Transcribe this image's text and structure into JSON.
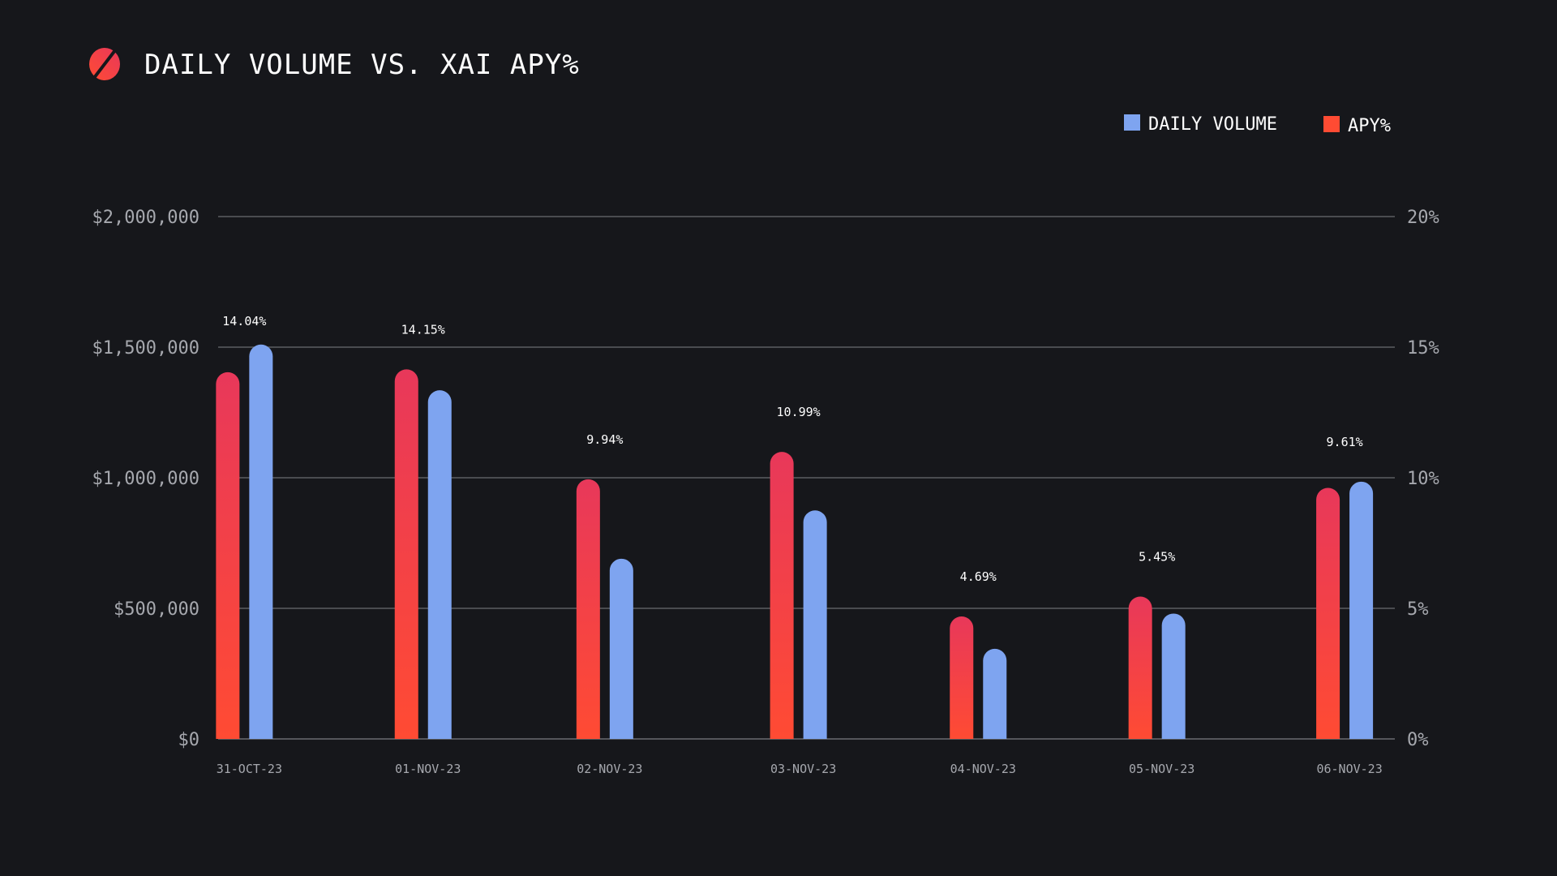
{
  "chart_data": {
    "type": "bar",
    "title": "DAILY VOLUME VS. XAI APY%",
    "categories": [
      "31-OCT-23",
      "01-NOV-23",
      "02-NOV-23",
      "03-NOV-23",
      "04-NOV-23",
      "05-NOV-23",
      "06-NOV-23"
    ],
    "series": [
      {
        "name": "APY%",
        "axis": "right",
        "color": "#ff4b33",
        "values": [
          14.04,
          14.15,
          9.94,
          10.99,
          4.69,
          5.45,
          9.61
        ],
        "labels": [
          "14.04%",
          "14.15%",
          "9.94%",
          "10.99%",
          "4.69%",
          "5.45%",
          "9.61%"
        ]
      },
      {
        "name": "DAILY VOLUME",
        "axis": "left",
        "color": "#7ea4f0",
        "values": [
          1510000,
          1335000,
          690000,
          875000,
          345000,
          480000,
          985000
        ]
      }
    ],
    "left_axis": {
      "ylim": [
        0,
        2000000
      ],
      "ticks": [
        "$0",
        "$500,000",
        "$1,000,000",
        "$1,500,000",
        "$2,000,000"
      ]
    },
    "right_axis": {
      "ylim": [
        0,
        20
      ],
      "ticks": [
        "0%",
        "5%",
        "10%",
        "15%",
        "20%"
      ]
    },
    "legend": {
      "placement": "top-right",
      "items": [
        "DAILY VOLUME",
        "APY%"
      ]
    },
    "grid": true
  },
  "colors": {
    "background": "#16171b",
    "apy_top": "#e8385a",
    "apy_bottom": "#ff4b33",
    "volume": "#7ea4f0",
    "grid": "#5c5e63"
  }
}
